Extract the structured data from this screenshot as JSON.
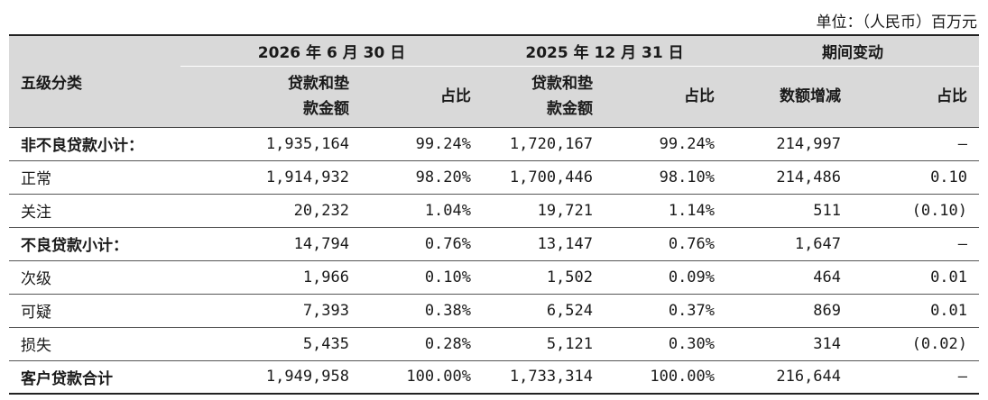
{
  "unit_note": "单位：（人民币）百万元",
  "header": {
    "category_label": "五级分类",
    "groups": [
      "2026 年 6 月 30 日",
      "2025 年 12 月 31 日",
      "期间变动"
    ],
    "amount_label_line1": "贷款和垫",
    "amount_label_line2": "款金额",
    "share_label": "占比",
    "change_amount_label": "数额增减",
    "change_share_label": "占比"
  },
  "rows": [
    {
      "label": "非不良贷款小计：",
      "bold": true,
      "a2026": "1,935,164",
      "p2026": "99.24%",
      "a2025": "1,720,167",
      "p2025": "99.24%",
      "chg": "214,997",
      "chgp": "–"
    },
    {
      "label": "正常",
      "bold": false,
      "a2026": "1,914,932",
      "p2026": "98.20%",
      "a2025": "1,700,446",
      "p2025": "98.10%",
      "chg": "214,486",
      "chgp": "0.10"
    },
    {
      "label": "关注",
      "bold": false,
      "a2026": "20,232",
      "p2026": "1.04%",
      "a2025": "19,721",
      "p2025": "1.14%",
      "chg": "511",
      "chgp": "(0.10)"
    },
    {
      "label": "不良贷款小计：",
      "bold": true,
      "a2026": "14,794",
      "p2026": "0.76%",
      "a2025": "13,147",
      "p2025": "0.76%",
      "chg": "1,647",
      "chgp": "–"
    },
    {
      "label": "次级",
      "bold": false,
      "a2026": "1,966",
      "p2026": "0.10%",
      "a2025": "1,502",
      "p2025": "0.09%",
      "chg": "464",
      "chgp": "0.01"
    },
    {
      "label": "可疑",
      "bold": false,
      "a2026": "7,393",
      "p2026": "0.38%",
      "a2025": "6,524",
      "p2025": "0.37%",
      "chg": "869",
      "chgp": "0.01"
    },
    {
      "label": "损失",
      "bold": false,
      "a2026": "5,435",
      "p2026": "0.28%",
      "a2025": "5,121",
      "p2025": "0.30%",
      "chg": "314",
      "chgp": "(0.02)"
    },
    {
      "label": "客户贷款合计",
      "bold": true,
      "a2026": "1,949,958",
      "p2026": "100.00%",
      "a2025": "1,733,314",
      "p2025": "100.00%",
      "chg": "216,644",
      "chgp": "–"
    }
  ]
}
